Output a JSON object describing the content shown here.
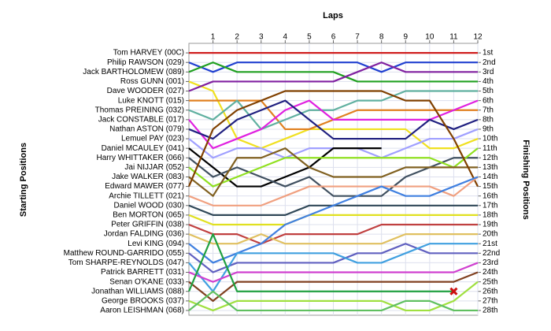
{
  "chart_data": {
    "type": "line",
    "xlabel": "Laps",
    "ylabel": "Starting Positions",
    "y2label": "Finishing Positions",
    "xlim": [
      0,
      12
    ],
    "xticks": [
      1,
      2,
      3,
      4,
      5,
      6,
      7,
      8,
      9,
      10,
      11,
      12
    ],
    "ylim": [
      28.5,
      0
    ],
    "yticks": [
      {
        "value": 1,
        "label": "Tom HARVEY (00C)"
      },
      {
        "value": 2,
        "label": "Philip RAWSON (029)"
      },
      {
        "value": 3,
        "label": "Jack BARTHOLOMEW (089)"
      },
      {
        "value": 4,
        "label": "Ross GUNN (001)"
      },
      {
        "value": 5,
        "label": "Dave WOODER (027)"
      },
      {
        "value": 6,
        "label": "Luke KNOTT (015)"
      },
      {
        "value": 7,
        "label": "Thomas PREINING (032)"
      },
      {
        "value": 8,
        "label": "Jack CONSTABLE (017)"
      },
      {
        "value": 9,
        "label": "Nathan ASTON (079)"
      },
      {
        "value": 10,
        "label": "Lemuel PAY (023)"
      },
      {
        "value": 11,
        "label": "Daniel MCAULEY (041)"
      },
      {
        "value": 12,
        "label": "Harry WHITTAKER (066)"
      },
      {
        "value": 13,
        "label": "Jai NIJJAR (052)"
      },
      {
        "value": 14,
        "label": "Jake WALKER (083)"
      },
      {
        "value": 15,
        "label": "Edward MAWER (077)"
      },
      {
        "value": 16,
        "label": "Archie TILLETT (021)"
      },
      {
        "value": 17,
        "label": "Daniel WOOD (030)"
      },
      {
        "value": 18,
        "label": "Ben MORTON (065)"
      },
      {
        "value": 19,
        "label": "Peter GRIFFIN (038)"
      },
      {
        "value": 20,
        "label": "Jordan FALDING (036)"
      },
      {
        "value": 21,
        "label": "Levi KING (094)"
      },
      {
        "value": 22,
        "label": "Matthew ROUND-GARRIDO (055)"
      },
      {
        "value": 23,
        "label": "Tom SHARPE-REYNOLDS (047)"
      },
      {
        "value": 24,
        "label": "Patrick BARRETT (031)"
      },
      {
        "value": 25,
        "label": "Senan O'KANE (033)"
      },
      {
        "value": 26,
        "label": "Jonathan WILLIAMS (088)"
      },
      {
        "value": 27,
        "label": "George BROOKS (037)"
      },
      {
        "value": 28,
        "label": "Aaron LEISHMAN (068)"
      }
    ],
    "y2lim": [
      28.5,
      0
    ],
    "y2ticks": [
      {
        "value": 1,
        "label": "1st"
      },
      {
        "value": 2,
        "label": "2nd"
      },
      {
        "value": 3,
        "label": "3rd"
      },
      {
        "value": 4,
        "label": "4th"
      },
      {
        "value": 5,
        "label": "5th"
      },
      {
        "value": 6,
        "label": "6th"
      },
      {
        "value": 7,
        "label": "7th"
      },
      {
        "value": 8,
        "label": "8th"
      },
      {
        "value": 9,
        "label": "9th"
      },
      {
        "value": 10,
        "label": "10th"
      },
      {
        "value": 11,
        "label": "11th"
      },
      {
        "value": 12,
        "label": "12th"
      },
      {
        "value": 13,
        "label": "13th"
      },
      {
        "value": 14,
        "label": "14th"
      },
      {
        "value": 15,
        "label": "15th"
      },
      {
        "value": 16,
        "label": "16th"
      },
      {
        "value": 17,
        "label": "17th"
      },
      {
        "value": 18,
        "label": "18th"
      },
      {
        "value": 19,
        "label": "19th"
      },
      {
        "value": 20,
        "label": "20th"
      },
      {
        "value": 21,
        "label": "21st"
      },
      {
        "value": 22,
        "label": "22nd"
      },
      {
        "value": 23,
        "label": "23rd"
      },
      {
        "value": 24,
        "label": "24th"
      },
      {
        "value": 25,
        "label": "25th"
      },
      {
        "value": 26,
        "label": "26th"
      },
      {
        "value": 27,
        "label": "27th"
      },
      {
        "value": 28,
        "label": "28th"
      }
    ],
    "grid": true,
    "series": [
      {
        "color": "#d02020",
        "values": [
          1,
          1,
          1,
          1,
          1,
          1,
          1,
          1,
          1,
          1,
          1,
          1,
          1
        ]
      },
      {
        "color": "#2040d0",
        "values": [
          2,
          3,
          2,
          2,
          2,
          2,
          2,
          2,
          3,
          2,
          2,
          2,
          2
        ]
      },
      {
        "color": "#20a020",
        "values": [
          3,
          2,
          3,
          3,
          3,
          3,
          3,
          4,
          4,
          4,
          4,
          4,
          4
        ]
      },
      {
        "color": "#f0e020",
        "values": [
          4,
          5,
          10,
          11,
          10,
          9,
          9,
          9,
          9,
          9,
          11,
          11,
          10
        ]
      },
      {
        "color": "#8020a0",
        "values": [
          5,
          4,
          4,
          4,
          4,
          4,
          4,
          3,
          2,
          3,
          3,
          3,
          3
        ]
      },
      {
        "color": "#e08020",
        "values": [
          6,
          6,
          6,
          6,
          9,
          9,
          8,
          7,
          7,
          7,
          7,
          7,
          7
        ]
      },
      {
        "color": "#60b0a0",
        "values": [
          7,
          8,
          6,
          9,
          8,
          7,
          7,
          6,
          6,
          5,
          5,
          5,
          5
        ]
      },
      {
        "color": "#e020e0",
        "values": [
          8,
          11,
          10,
          9,
          7,
          6,
          8,
          8,
          8,
          8,
          8,
          7,
          6
        ]
      },
      {
        "color": "#202080",
        "values": [
          9,
          10,
          8,
          7,
          6,
          8,
          10,
          10,
          10,
          10,
          8,
          9,
          8
        ]
      },
      {
        "color": "#a0a0ff",
        "values": [
          10,
          12,
          11,
          11,
          12,
          11,
          11,
          11,
          12,
          11,
          10,
          10,
          9
        ]
      },
      {
        "color": "#000000",
        "values": [
          11,
          13,
          15,
          15,
          14,
          13,
          11,
          11,
          11,
          null,
          null,
          null,
          null
        ]
      },
      {
        "color": "#405060",
        "values": [
          12,
          14,
          13,
          14,
          15,
          14,
          16,
          16,
          16,
          14,
          13,
          12,
          12
        ]
      },
      {
        "color": "#90e020",
        "values": [
          13,
          15,
          14,
          13,
          12,
          12,
          12,
          12,
          12,
          12,
          12,
          13,
          11
        ]
      },
      {
        "color": "#806020",
        "values": [
          14,
          16,
          12,
          12,
          11,
          13,
          14,
          14,
          14,
          13,
          13,
          13,
          13
        ]
      },
      {
        "color": "#804000",
        "values": [
          15,
          9,
          7,
          6,
          5,
          5,
          5,
          5,
          5,
          6,
          6,
          10,
          15
        ]
      },
      {
        "color": "#f0a080",
        "values": [
          16,
          17,
          17,
          17,
          16,
          15,
          15,
          15,
          15,
          15,
          15,
          16,
          14
        ]
      },
      {
        "color": "#304858",
        "values": [
          17,
          18,
          18,
          18,
          18,
          17,
          17,
          17,
          17,
          17,
          17,
          17,
          17
        ]
      },
      {
        "color": "#e0e020",
        "values": [
          18,
          19,
          19,
          19,
          19,
          18,
          18,
          18,
          18,
          18,
          18,
          18,
          18
        ]
      },
      {
        "color": "#c04040",
        "values": [
          19,
          20,
          20,
          21,
          20,
          20,
          20,
          20,
          19,
          19,
          19,
          19,
          19
        ]
      },
      {
        "color": "#e0c060",
        "values": [
          20,
          21,
          21,
          20,
          21,
          21,
          21,
          21,
          21,
          20,
          20,
          20,
          20
        ]
      },
      {
        "color": "#4080e0",
        "values": [
          21,
          23,
          22,
          21,
          19,
          18,
          17,
          16,
          15,
          16,
          16,
          15,
          14
        ]
      },
      {
        "color": "#6060c0",
        "values": [
          22,
          24,
          23,
          23,
          23,
          23,
          23,
          22,
          22,
          21,
          22,
          22,
          22
        ]
      },
      {
        "color": "#40a0e0",
        "values": [
          23,
          26,
          22,
          22,
          22,
          22,
          22,
          23,
          23,
          22,
          21,
          21,
          21
        ]
      },
      {
        "color": "#d040d0",
        "values": [
          24,
          25,
          24,
          24,
          24,
          24,
          24,
          24,
          24,
          24,
          24,
          24,
          23
        ]
      },
      {
        "color": "#804020",
        "values": [
          25,
          27,
          25,
          25,
          25,
          25,
          25,
          25,
          25,
          25,
          25,
          25,
          24
        ]
      },
      {
        "color": "#20a040",
        "marker": "x",
        "values": [
          26,
          20,
          26,
          26,
          26,
          26,
          26,
          26,
          26,
          26,
          26,
          26,
          null
        ]
      },
      {
        "color": "#a0e040",
        "values": [
          27,
          28,
          27,
          27,
          27,
          27,
          27,
          27,
          27,
          28,
          28,
          27,
          25
        ]
      },
      {
        "color": "#60c060",
        "values": [
          28,
          26,
          28,
          28,
          28,
          28,
          28,
          28,
          28,
          27,
          27,
          28,
          28
        ]
      }
    ]
  }
}
